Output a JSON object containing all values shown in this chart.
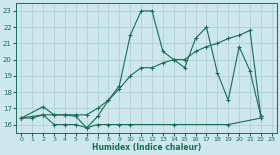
{
  "xlabel": "Humidex (Indice chaleur)",
  "bg_color": "#cce8ec",
  "grid_color": "#aacccc",
  "line_color": "#1a6b5a",
  "xlim": [
    -0.5,
    23.5
  ],
  "ylim": [
    15.5,
    23.5
  ],
  "yticks": [
    16,
    17,
    18,
    19,
    20,
    21,
    22,
    23
  ],
  "xticks": [
    0,
    1,
    2,
    3,
    4,
    5,
    6,
    7,
    8,
    9,
    10,
    11,
    12,
    13,
    14,
    15,
    16,
    17,
    18,
    19,
    20,
    21,
    22,
    23
  ],
  "line1_x": [
    0,
    2,
    3,
    4,
    5,
    6,
    7,
    8,
    9,
    10,
    11,
    12,
    13,
    14,
    15,
    16,
    17,
    18,
    19,
    20,
    21,
    22
  ],
  "line1_y": [
    16.4,
    17.1,
    16.6,
    16.6,
    16.5,
    15.8,
    16.5,
    17.5,
    18.4,
    21.5,
    23.0,
    23.0,
    20.5,
    20.0,
    19.5,
    21.3,
    22.0,
    19.2,
    17.5,
    20.8,
    19.3,
    16.5
  ],
  "line2_x": [
    0,
    2,
    3,
    4,
    5,
    6,
    7,
    8,
    9,
    10,
    11,
    12,
    13,
    14,
    15,
    16,
    17,
    18,
    19,
    20,
    21,
    22
  ],
  "line2_y": [
    16.4,
    16.6,
    16.6,
    16.6,
    16.6,
    16.6,
    17.0,
    17.5,
    18.2,
    19.0,
    19.5,
    19.5,
    19.8,
    20.0,
    20.0,
    20.5,
    20.8,
    21.0,
    21.3,
    21.5,
    21.8,
    16.5
  ],
  "line3_x": [
    0,
    1,
    2,
    3,
    4,
    5,
    6,
    7,
    8,
    9,
    10,
    14,
    19,
    22
  ],
  "line3_y": [
    16.4,
    16.4,
    16.6,
    16.0,
    16.0,
    16.0,
    15.8,
    16.0,
    16.0,
    16.0,
    16.0,
    16.0,
    16.0,
    16.4
  ]
}
